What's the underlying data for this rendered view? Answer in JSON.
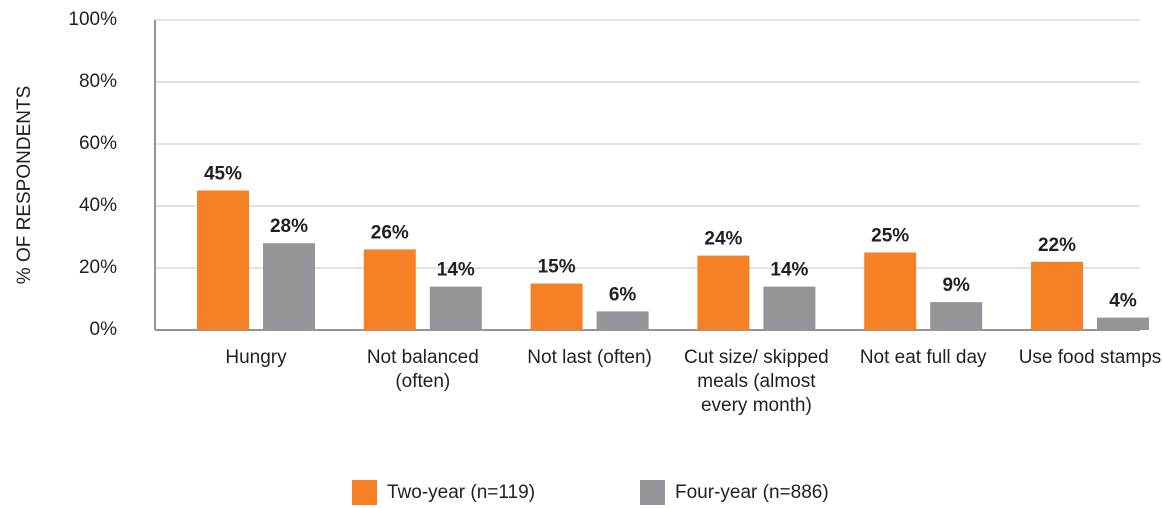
{
  "chart_data": {
    "type": "bar",
    "y_axis_label": "% OF RESPONDENTS",
    "categories": [
      "Hungry",
      "Not balanced (often)",
      "Not last (often)",
      "Cut size/ skipped meals (almost every month)",
      "Not eat full day",
      "Use food stamps"
    ],
    "series": [
      {
        "name": "Two-year (n=119)",
        "color": "#f58025",
        "values": [
          45,
          26,
          15,
          24,
          25,
          22
        ],
        "value_labels": [
          "45%",
          "26%",
          "15%",
          "24%",
          "25%",
          "22%"
        ]
      },
      {
        "name": "Four-year (n=886)",
        "color": "#939598",
        "values": [
          28,
          14,
          6,
          14,
          9,
          4
        ],
        "value_labels": [
          "28%",
          "14%",
          "6%",
          "14%",
          "9%",
          "4%"
        ]
      }
    ],
    "ylim": [
      0,
      100
    ],
    "yticks": [
      {
        "value": 0,
        "label": "0%"
      },
      {
        "value": 20,
        "label": "20%"
      },
      {
        "value": 40,
        "label": "40%"
      },
      {
        "value": 60,
        "label": "60%"
      },
      {
        "value": 80,
        "label": "80%"
      },
      {
        "value": 100,
        "label": "100%"
      }
    ],
    "grid": true,
    "legend": "bottom"
  }
}
